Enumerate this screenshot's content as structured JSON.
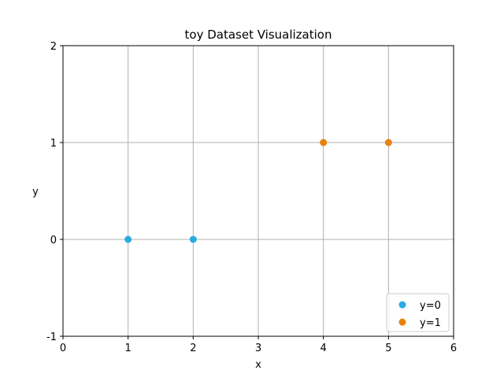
{
  "chart_data": {
    "type": "scatter",
    "title": "toy Dataset Visualization",
    "xlabel": "x",
    "ylabel": "y",
    "xlim": [
      0,
      6
    ],
    "ylim": [
      -1,
      2
    ],
    "xticks": [
      "0",
      "1",
      "2",
      "3",
      "4",
      "5",
      "6"
    ],
    "yticks": [
      "-1",
      "0",
      "1",
      "2"
    ],
    "grid": true,
    "legend_position": "lower-right",
    "series": [
      {
        "name": "y=0",
        "color": "#29abe2",
        "points": [
          [
            1,
            0
          ],
          [
            2,
            0
          ]
        ]
      },
      {
        "name": "y=1",
        "color": "#e8820c",
        "points": [
          [
            4,
            1
          ],
          [
            5,
            1
          ]
        ]
      }
    ]
  }
}
